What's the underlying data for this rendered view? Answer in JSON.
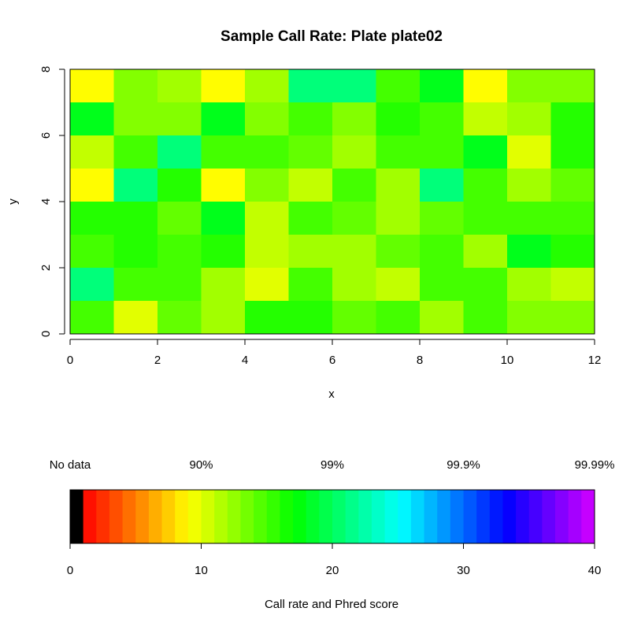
{
  "chart_data": [
    {
      "type": "heatmap",
      "title": "Sample Call Rate:  Plate plate02",
      "xlabel": "x",
      "ylabel": "y",
      "xlim": [
        0,
        12
      ],
      "ylim": [
        0,
        8
      ],
      "x_ticks": [
        "0",
        "2",
        "4",
        "6",
        "8",
        "10",
        "12"
      ],
      "y_ticks": [
        "0",
        "2",
        "4",
        "6",
        "8"
      ],
      "color_scale": "phred score 0-40 (hue rainbow: black=no data, red to magenta)",
      "rows_top_to_bottom_y": [
        8,
        7,
        6,
        5,
        4,
        3,
        2,
        1
      ],
      "values_phred_rows_top_to_bottom": [
        [
          9,
          13,
          12,
          9,
          12,
          21,
          21,
          15,
          18,
          9,
          13,
          13
        ],
        [
          18,
          13,
          13,
          18,
          13,
          15,
          13,
          16,
          15,
          11,
          12,
          16
        ],
        [
          11,
          15,
          21,
          15,
          15,
          14,
          12,
          15,
          15,
          18,
          10,
          16
        ],
        [
          9,
          21,
          16,
          9,
          13,
          11,
          15,
          12,
          21,
          15,
          12,
          14
        ],
        [
          16,
          16,
          14,
          18,
          11,
          15,
          14,
          12,
          14,
          15,
          15,
          15
        ],
        [
          15,
          16,
          15,
          16,
          11,
          12,
          12,
          14,
          15,
          12,
          18,
          16
        ],
        [
          21,
          15,
          15,
          12,
          10,
          15,
          12,
          11,
          15,
          15,
          12,
          11
        ],
        [
          15,
          10,
          14,
          12,
          16,
          16,
          14,
          15,
          12,
          15,
          13,
          13
        ]
      ]
    },
    {
      "type": "heatmap",
      "xlabel": "Call rate and Phred score",
      "xlim": [
        0,
        40
      ],
      "x_ticks": [
        "0",
        "10",
        "20",
        "30",
        "40"
      ],
      "top_labels": [
        {
          "at": 0,
          "text": "No data"
        },
        {
          "at": 10,
          "text": "90%"
        },
        {
          "at": 20,
          "text": "99%"
        },
        {
          "at": 30,
          "text": "99.9%"
        },
        {
          "at": 40,
          "text": "99.99%"
        }
      ],
      "no_data_color": "#000000",
      "bins": 40
    }
  ]
}
